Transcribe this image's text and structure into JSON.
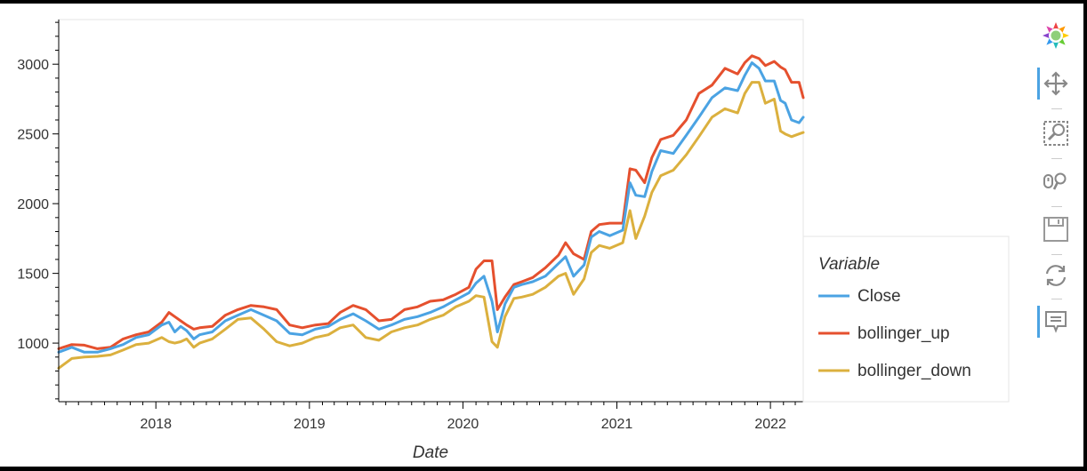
{
  "chart_data": {
    "type": "line",
    "xlabel": "Date",
    "ylabel": "",
    "xlim": [
      "2017-05-15",
      "2022-03-20"
    ],
    "ylim": [
      580,
      3320
    ],
    "x_ticks": [
      "2018",
      "2019",
      "2020",
      "2021",
      "2022"
    ],
    "y_ticks": [
      1000,
      1500,
      2000,
      2500,
      3000
    ],
    "grid": false,
    "legend": {
      "title": "Variable",
      "placement": "right"
    },
    "series": [
      {
        "name": "Close",
        "color": "#4ba3e3",
        "x": [
          "2017-05-15",
          "2017-06-15",
          "2017-07-15",
          "2017-08-15",
          "2017-09-15",
          "2017-10-15",
          "2017-11-15",
          "2017-12-15",
          "2018-01-15",
          "2018-02-01",
          "2018-02-15",
          "2018-03-01",
          "2018-03-15",
          "2018-04-01",
          "2018-04-15",
          "2018-05-15",
          "2018-06-15",
          "2018-07-15",
          "2018-08-15",
          "2018-09-15",
          "2018-10-15",
          "2018-11-15",
          "2018-12-15",
          "2019-01-15",
          "2019-02-15",
          "2019-03-15",
          "2019-04-15",
          "2019-05-15",
          "2019-06-15",
          "2019-07-15",
          "2019-08-15",
          "2019-09-15",
          "2019-10-15",
          "2019-11-15",
          "2019-12-15",
          "2020-01-15",
          "2020-02-01",
          "2020-02-20",
          "2020-03-10",
          "2020-03-23",
          "2020-04-10",
          "2020-05-01",
          "2020-05-20",
          "2020-06-15",
          "2020-07-15",
          "2020-08-15",
          "2020-09-01",
          "2020-09-20",
          "2020-10-15",
          "2020-11-01",
          "2020-11-20",
          "2020-12-15",
          "2021-01-15",
          "2021-02-01",
          "2021-02-15",
          "2021-03-08",
          "2021-03-25",
          "2021-04-15",
          "2021-05-15",
          "2021-06-15",
          "2021-07-15",
          "2021-08-15",
          "2021-09-15",
          "2021-10-15",
          "2021-11-01",
          "2021-11-18",
          "2021-12-05",
          "2021-12-20",
          "2022-01-10",
          "2022-01-25",
          "2022-02-05",
          "2022-02-20",
          "2022-03-10",
          "2022-03-20"
        ],
        "values": [
          935,
          970,
          935,
          935,
          960,
          990,
          1040,
          1060,
          1130,
          1150,
          1080,
          1120,
          1090,
          1030,
          1060,
          1080,
          1160,
          1200,
          1240,
          1200,
          1160,
          1070,
          1060,
          1100,
          1120,
          1170,
          1210,
          1160,
          1100,
          1130,
          1170,
          1190,
          1220,
          1260,
          1310,
          1360,
          1430,
          1480,
          1300,
          1080,
          1280,
          1400,
          1420,
          1440,
          1480,
          1570,
          1620,
          1480,
          1560,
          1760,
          1800,
          1770,
          1810,
          2150,
          2060,
          2050,
          2230,
          2380,
          2360,
          2490,
          2620,
          2760,
          2830,
          2810,
          2920,
          3010,
          2970,
          2880,
          2880,
          2740,
          2720,
          2600,
          2580,
          2620
        ]
      },
      {
        "name": "bollinger_up",
        "color": "#e5502e",
        "x": [
          "2017-05-15",
          "2017-06-15",
          "2017-07-15",
          "2017-08-15",
          "2017-09-15",
          "2017-10-15",
          "2017-11-15",
          "2017-12-15",
          "2018-01-15",
          "2018-02-01",
          "2018-02-15",
          "2018-03-01",
          "2018-03-15",
          "2018-04-01",
          "2018-04-15",
          "2018-05-15",
          "2018-06-15",
          "2018-07-15",
          "2018-08-15",
          "2018-09-15",
          "2018-10-15",
          "2018-11-15",
          "2018-12-15",
          "2019-01-15",
          "2019-02-15",
          "2019-03-15",
          "2019-04-15",
          "2019-05-15",
          "2019-06-15",
          "2019-07-15",
          "2019-08-15",
          "2019-09-15",
          "2019-10-15",
          "2019-11-15",
          "2019-12-15",
          "2020-01-15",
          "2020-02-01",
          "2020-02-20",
          "2020-03-10",
          "2020-03-23",
          "2020-04-10",
          "2020-05-01",
          "2020-05-20",
          "2020-06-15",
          "2020-07-15",
          "2020-08-15",
          "2020-09-01",
          "2020-09-20",
          "2020-10-15",
          "2020-11-01",
          "2020-11-20",
          "2020-12-15",
          "2021-01-15",
          "2021-02-01",
          "2021-02-15",
          "2021-03-08",
          "2021-03-25",
          "2021-04-15",
          "2021-05-15",
          "2021-06-15",
          "2021-07-15",
          "2021-08-15",
          "2021-09-15",
          "2021-10-15",
          "2021-11-01",
          "2021-11-18",
          "2021-12-05",
          "2021-12-20",
          "2022-01-10",
          "2022-01-25",
          "2022-02-05",
          "2022-02-20",
          "2022-03-10",
          "2022-03-20"
        ],
        "values": [
          960,
          990,
          985,
          960,
          970,
          1030,
          1060,
          1080,
          1150,
          1220,
          1190,
          1160,
          1130,
          1100,
          1110,
          1120,
          1200,
          1240,
          1270,
          1260,
          1240,
          1130,
          1110,
          1130,
          1140,
          1220,
          1270,
          1240,
          1160,
          1170,
          1240,
          1260,
          1300,
          1310,
          1350,
          1400,
          1530,
          1590,
          1590,
          1240,
          1330,
          1420,
          1440,
          1470,
          1540,
          1630,
          1720,
          1640,
          1600,
          1800,
          1850,
          1860,
          1860,
          2250,
          2240,
          2150,
          2330,
          2460,
          2490,
          2600,
          2790,
          2850,
          2970,
          2930,
          3010,
          3060,
          3040,
          2990,
          3020,
          2980,
          2960,
          2870,
          2870,
          2760
        ]
      },
      {
        "name": "bollinger_down",
        "color": "#dbb03e",
        "x": [
          "2017-05-15",
          "2017-06-15",
          "2017-07-15",
          "2017-08-15",
          "2017-09-15",
          "2017-10-15",
          "2017-11-15",
          "2017-12-15",
          "2018-01-15",
          "2018-02-01",
          "2018-02-15",
          "2018-03-01",
          "2018-03-15",
          "2018-04-01",
          "2018-04-15",
          "2018-05-15",
          "2018-06-15",
          "2018-07-15",
          "2018-08-15",
          "2018-09-15",
          "2018-10-15",
          "2018-11-15",
          "2018-12-15",
          "2019-01-15",
          "2019-02-15",
          "2019-03-15",
          "2019-04-15",
          "2019-05-15",
          "2019-06-15",
          "2019-07-15",
          "2019-08-15",
          "2019-09-15",
          "2019-10-15",
          "2019-11-15",
          "2019-12-15",
          "2020-01-15",
          "2020-02-01",
          "2020-02-20",
          "2020-03-10",
          "2020-03-23",
          "2020-04-10",
          "2020-05-01",
          "2020-05-20",
          "2020-06-15",
          "2020-07-15",
          "2020-08-15",
          "2020-09-01",
          "2020-09-20",
          "2020-10-15",
          "2020-11-01",
          "2020-11-20",
          "2020-12-15",
          "2021-01-15",
          "2021-02-01",
          "2021-02-15",
          "2021-03-08",
          "2021-03-25",
          "2021-04-15",
          "2021-05-15",
          "2021-06-15",
          "2021-07-15",
          "2021-08-15",
          "2021-09-15",
          "2021-10-15",
          "2021-11-01",
          "2021-11-18",
          "2021-12-05",
          "2021-12-20",
          "2022-01-10",
          "2022-01-25",
          "2022-02-05",
          "2022-02-20",
          "2022-03-10",
          "2022-03-20"
        ],
        "values": [
          820,
          890,
          900,
          905,
          915,
          950,
          990,
          1000,
          1040,
          1010,
          1000,
          1010,
          1030,
          970,
          1000,
          1030,
          1100,
          1170,
          1180,
          1100,
          1010,
          980,
          1000,
          1040,
          1060,
          1110,
          1130,
          1040,
          1020,
          1080,
          1110,
          1130,
          1170,
          1200,
          1260,
          1300,
          1340,
          1330,
          1010,
          970,
          1190,
          1320,
          1330,
          1350,
          1400,
          1480,
          1500,
          1350,
          1460,
          1650,
          1700,
          1680,
          1720,
          1950,
          1750,
          1910,
          2080,
          2200,
          2240,
          2350,
          2480,
          2620,
          2680,
          2650,
          2790,
          2870,
          2870,
          2720,
          2750,
          2520,
          2500,
          2480,
          2500,
          2510
        ]
      }
    ]
  },
  "toolbar": {
    "tools": [
      {
        "name": "bokeh-logo",
        "active": false
      },
      {
        "name": "pan",
        "active": true
      },
      {
        "name": "box-zoom",
        "active": false
      },
      {
        "name": "wheel-zoom",
        "active": false
      },
      {
        "name": "save",
        "active": false
      },
      {
        "name": "reset",
        "active": false
      },
      {
        "name": "hover",
        "active": true
      }
    ]
  }
}
